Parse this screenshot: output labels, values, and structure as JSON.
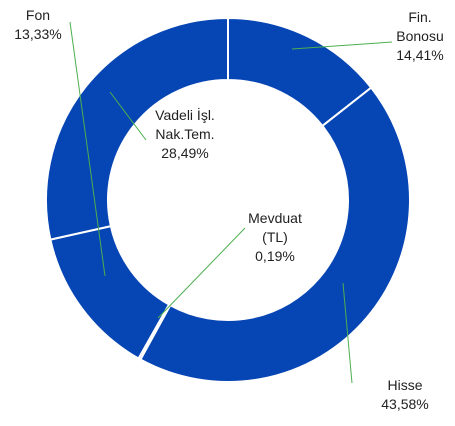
{
  "chart_data": {
    "type": "donut",
    "categories": [
      "Fin.\nBonosu",
      "Hisse",
      "Mevduat\n(TL)",
      "Fon",
      "Vadeli İşl.\nNak.Tem."
    ],
    "values": [
      14.41,
      43.58,
      0.19,
      13.33,
      28.49
    ],
    "value_labels": [
      "14,41%",
      "43,58%",
      "0,19%",
      "13,33%",
      "28,49%"
    ],
    "color": "#0645b4"
  }
}
